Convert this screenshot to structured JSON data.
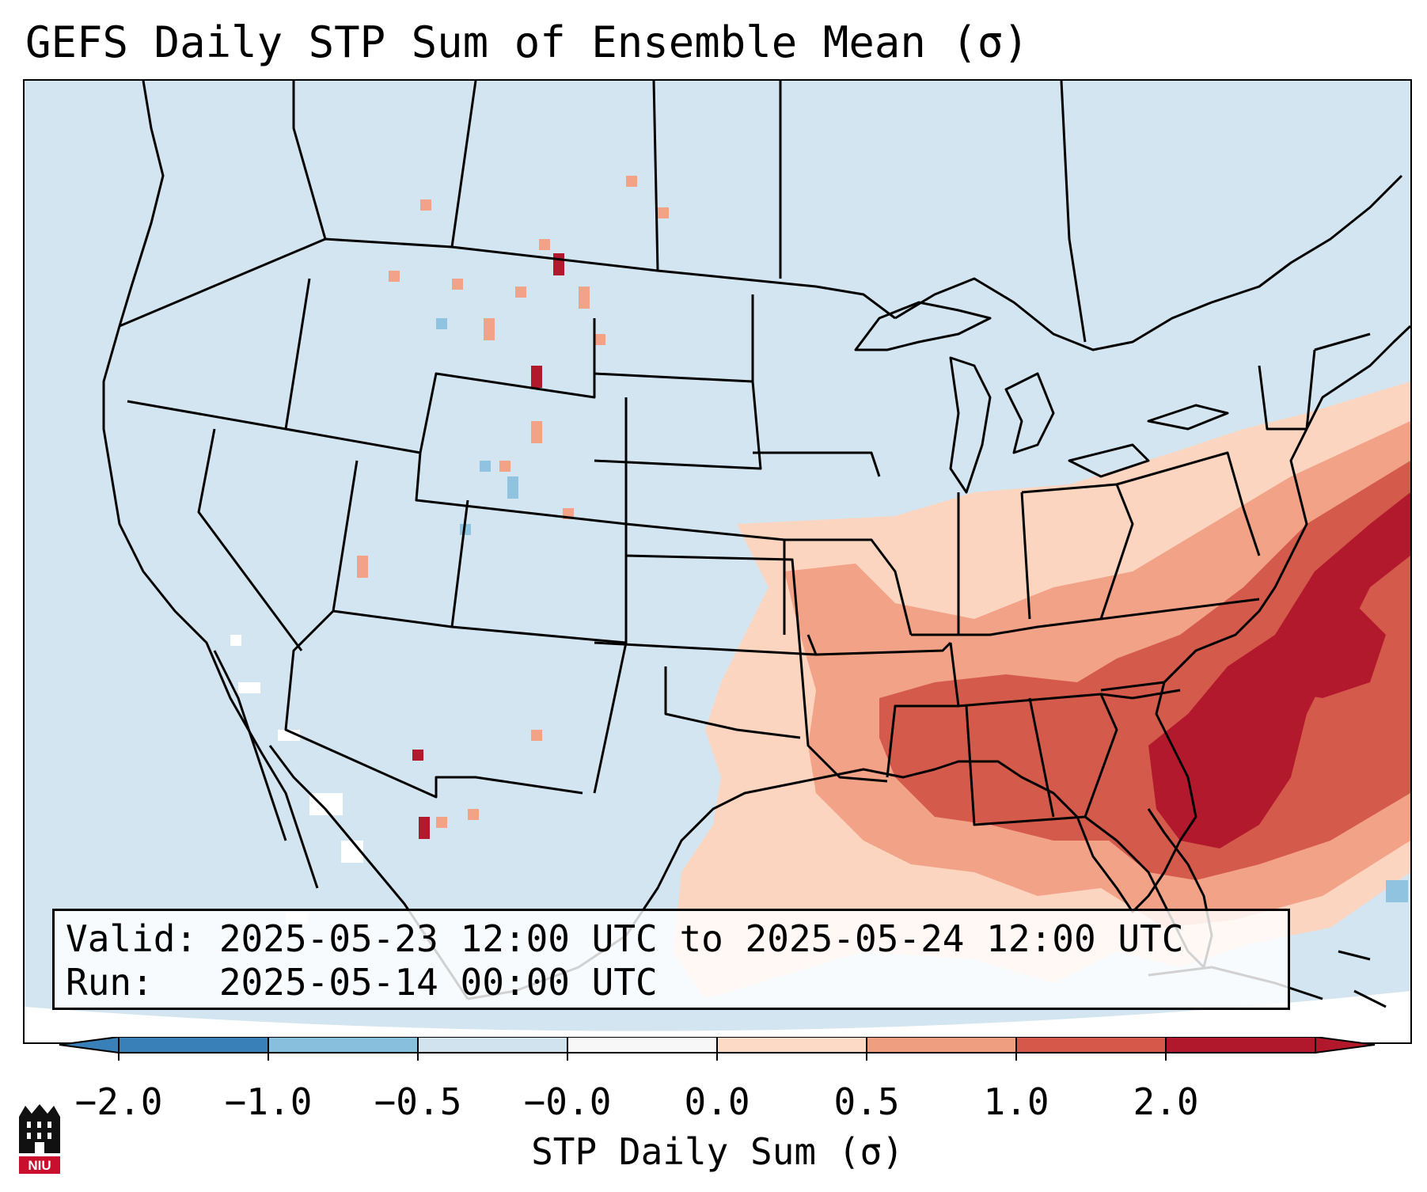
{
  "title": "GEFS Daily STP Sum of Ensemble Mean (σ)",
  "info": {
    "valid_line": "Valid: 2025-05-23 12:00 UTC to 2025-05-24 12:00 UTC",
    "run_line": "Run:   2025-05-14 00:00 UTC"
  },
  "colorbar": {
    "label": "STP Daily Sum (σ)",
    "ticks": [
      "−2.0",
      "−1.0",
      "−0.5",
      "−0.0",
      "0.0",
      "0.5",
      "1.0",
      "2.0"
    ],
    "colors": [
      "#3a80b8",
      "#88bfdd",
      "#d0e3ef",
      "#f7f7f7",
      "#fcdac6",
      "#ef9e80",
      "#d6584a",
      "#b2182b"
    ]
  },
  "logo": {
    "text": "NIU"
  }
}
